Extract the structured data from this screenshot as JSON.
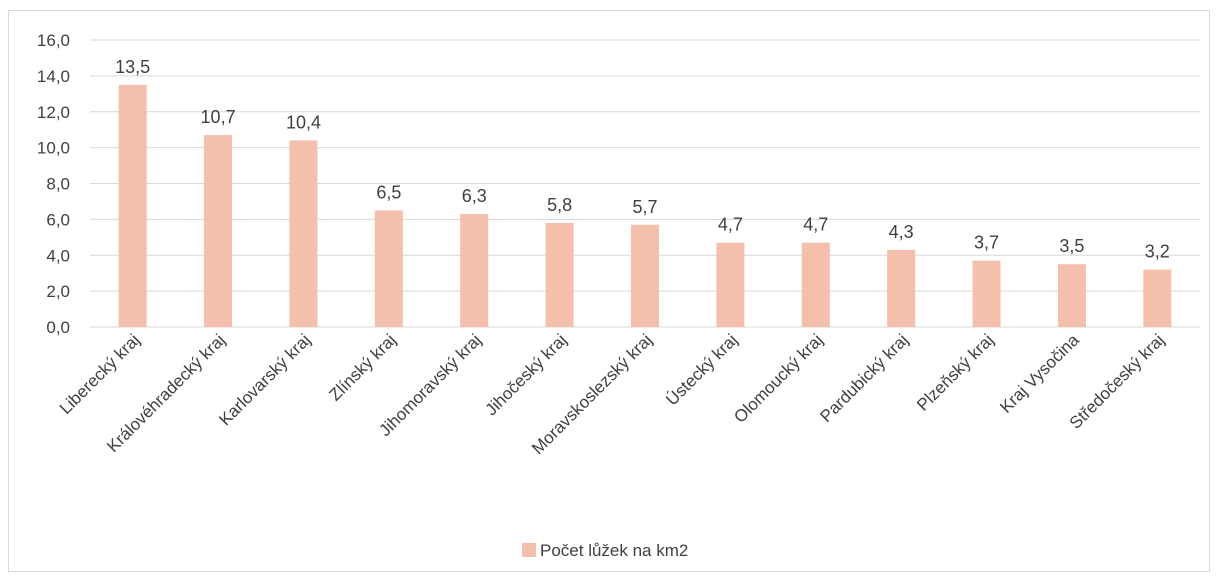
{
  "chart_data": {
    "type": "bar",
    "categories": [
      "Liberecký kraj",
      "Královéhradecký kraj",
      "Karlovarský kraj",
      "Zlínský kraj",
      "Jihomoravský kraj",
      "Jihočeský kraj",
      "Moravskoslezský kraj",
      "Ústecký kraj",
      "Olomoucký kraj",
      "Pardubický kraj",
      "Plzeňský kraj",
      "Kraj Vysočina",
      "Středočeský kraj"
    ],
    "series": [
      {
        "name": "Počet lůžek na km2",
        "values": [
          13.5,
          10.7,
          10.4,
          6.5,
          6.3,
          5.8,
          5.7,
          4.7,
          4.7,
          4.3,
          3.7,
          3.5,
          3.2
        ],
        "labels": [
          "13,5",
          "10,7",
          "10,4",
          "6,5",
          "6,3",
          "5,8",
          "5,7",
          "4,7",
          "4,7",
          "4,3",
          "3,7",
          "3,5",
          "3,2"
        ],
        "color": "#f4bfab"
      }
    ],
    "ylim": [
      0,
      16
    ],
    "yticks": [
      "0,0",
      "2,0",
      "4,0",
      "6,0",
      "8,0",
      "10,0",
      "12,0",
      "14,0",
      "16,0"
    ],
    "grid": true,
    "legend_position": "bottom",
    "gridline_color": "#d9d9d9"
  }
}
